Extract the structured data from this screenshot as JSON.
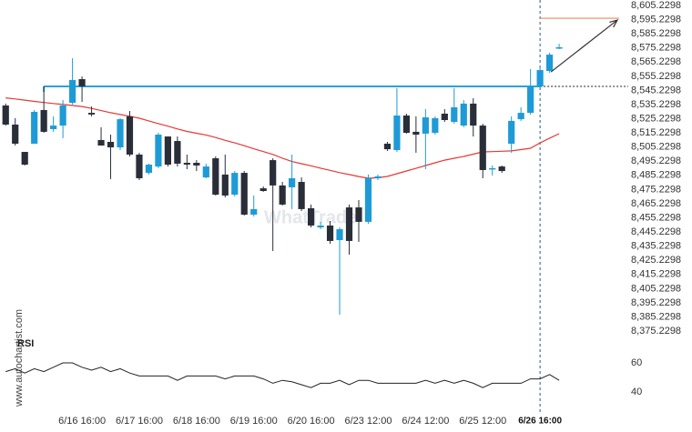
{
  "chart_data": {
    "type": "candlestick",
    "categories": [
      null,
      null,
      null,
      null,
      null,
      null,
      null,
      null,
      "6/16 16:00",
      null,
      null,
      null,
      null,
      null,
      "6/17 16:00",
      null,
      null,
      null,
      null,
      null,
      "6/18 16:00",
      null,
      null,
      null,
      null,
      null,
      "6/19 16:00",
      null,
      null,
      null,
      null,
      null,
      "6/20 16:00",
      null,
      null,
      null,
      null,
      null,
      "6/23 12:00",
      null,
      null,
      null,
      null,
      null,
      "6/24 12:00",
      null,
      null,
      null,
      null,
      null,
      "6/25 12:00",
      null,
      null,
      null,
      null,
      null,
      "6/26 16:00",
      null,
      null
    ],
    "open": [
      8534.6,
      8521.1,
      8501.8,
      8507.6,
      8531.4,
      8517.9,
      8520.4,
      8536.5,
      8553.2,
      8529.4,
      8510.2,
      8508.9,
      8505.0,
      8526.9,
      8499.9,
      8487.0,
      8491.5,
      8512.7,
      8509.5,
      8494.1,
      8494.1,
      8483.8,
      8497.3,
      8485.8,
      8471.6,
      8487.0,
      8457.5,
      8476.1,
      8496.0,
      8478.1,
      8476.8,
      8480.6,
      8462.0,
      8448.5,
      8449.8,
      8439.5,
      8462.6,
      8462.6,
      8452.4,
      8483.2,
      8507.6,
      8503.1,
      8527.5,
      8516.0,
      8514.7,
      8515.3,
      8528.8,
      8523.0,
      8520.4,
      8535.9,
      8520.4,
      8489.6,
      8491.5,
      8507.6,
      8524.9,
      8529.4,
      8548.1,
      8559.0,
      8575.7
    ],
    "high": [
      8535.9,
      8525.6,
      8501.8,
      8531.4,
      8548.1,
      8526.9,
      8538.4,
      8568.0,
      8555.1,
      8533.9,
      8519.2,
      8514.0,
      8525.6,
      8530.7,
      8501.2,
      8493.5,
      8515.3,
      8512.7,
      8512.7,
      8499.9,
      8496.0,
      8493.5,
      8498.6,
      8499.9,
      8488.3,
      8488.3,
      8471.0,
      8477.4,
      8497.3,
      8480.6,
      8499.9,
      8483.8,
      8464.6,
      8452.4,
      8453.0,
      8448.5,
      8464.6,
      8467.8,
      8485.8,
      8485.8,
      8508.9,
      8546.8,
      8528.8,
      8526.9,
      8532.0,
      8526.9,
      8532.0,
      8546.8,
      8538.4,
      8539.7,
      8521.7,
      8492.2,
      8492.2,
      8526.9,
      8533.3,
      8560.3,
      8562.2,
      8571.8,
      8578.2
    ],
    "low": [
      8520.4,
      8506.3,
      8492.2,
      8507.6,
      8515.3,
      8516.0,
      8511.5,
      8535.2,
      8537.1,
      8526.9,
      8506.3,
      8482.6,
      8503.1,
      8498.6,
      8481.9,
      8485.8,
      8490.3,
      8491.5,
      8491.5,
      8489.6,
      8488.3,
      8483.2,
      8471.0,
      8469.7,
      8470.3,
      8456.9,
      8456.2,
      8473.6,
      8431.8,
      8463.9,
      8461.4,
      8460.1,
      8448.5,
      8447.2,
      8436.9,
      8386.8,
      8429.2,
      8438.2,
      8451.1,
      8481.9,
      8502.5,
      8501.8,
      8514.7,
      8501.2,
      8489.6,
      8514.0,
      8523.0,
      8521.7,
      8519.2,
      8512.7,
      8483.2,
      8485.1,
      8487.0,
      8501.2,
      8523.7,
      8528.2,
      8546.8,
      8557.7,
      8574.4
    ],
    "close": [
      8521.1,
      8507.6,
      8492.8,
      8530.1,
      8516.0,
      8520.4,
      8534.6,
      8552.6,
      8548.1,
      8528.2,
      8506.3,
      8505.0,
      8524.9,
      8499.9,
      8483.2,
      8492.8,
      8514.0,
      8492.8,
      8493.5,
      8492.8,
      8492.2,
      8491.5,
      8471.6,
      8471.0,
      8487.0,
      8457.5,
      8461.4,
      8474.2,
      8478.1,
      8464.6,
      8483.2,
      8461.4,
      8449.8,
      8449.8,
      8438.9,
      8447.2,
      8438.9,
      8452.4,
      8483.2,
      8484.5,
      8503.7,
      8527.5,
      8515.3,
      8514.0,
      8526.2,
      8525.6,
      8524.3,
      8533.3,
      8535.9,
      8520.4,
      8489.0,
      8490.3,
      8488.3,
      8523.7,
      8529.4,
      8548.1,
      8559.6,
      8570.5,
      8575.7
    ],
    "up_color": "#1e9bd7",
    "down_color": "#2a2e39",
    "ylim": [
      8372.7,
      8609.1
    ],
    "yticks": [
      {
        "value": 8605.2298,
        "label": "8,605.2298"
      },
      {
        "value": 8595.2298,
        "label": "8,595.2298"
      },
      {
        "value": 8585.2298,
        "label": "8,585.2298"
      },
      {
        "value": 8575.2298,
        "label": "8,575.2298"
      },
      {
        "value": 8565.2298,
        "label": "8,565.2298"
      },
      {
        "value": 8555.2298,
        "label": "8,555.2298"
      },
      {
        "value": 8545.2298,
        "label": "8,545.2298"
      },
      {
        "value": 8535.2298,
        "label": "8,535.2298"
      },
      {
        "value": 8525.2298,
        "label": "8,525.2298"
      },
      {
        "value": 8515.2298,
        "label": "8,515.2298"
      },
      {
        "value": 8505.2298,
        "label": "8,505.2298"
      },
      {
        "value": 8495.2298,
        "label": "8,495.2298"
      },
      {
        "value": 8485.2298,
        "label": "8,485.2298"
      },
      {
        "value": 8475.2298,
        "label": "8,475.2298"
      },
      {
        "value": 8465.2298,
        "label": "8,465.2298"
      },
      {
        "value": 8455.2298,
        "label": "8,455.2298"
      },
      {
        "value": 8445.2298,
        "label": "8,445.2298"
      },
      {
        "value": 8435.2298,
        "label": "8,435.2298"
      },
      {
        "value": 8425.2298,
        "label": "8,425.2298"
      },
      {
        "value": 8415.2298,
        "label": "8,415.2298"
      },
      {
        "value": 8405.2298,
        "label": "8,405.2298"
      },
      {
        "value": 8395.2298,
        "label": "8,395.2298"
      },
      {
        "value": 8385.2298,
        "label": "8,385.2298"
      },
      {
        "value": 8375.2298,
        "label": "8,375.2298"
      }
    ],
    "level": 8548.1,
    "level_color": "#29a3dc",
    "target": 8596.2,
    "target_color": "#f08a5d",
    "ma": {
      "color": "#e53935",
      "values": [
        8540,
        8539.2,
        8538.4,
        8537.5,
        8536.7,
        8536,
        8535.3,
        8534.6,
        8533.9,
        8532.5,
        8531,
        8529.5,
        8528.2,
        8527,
        8525.6,
        8523.7,
        8521.8,
        8520,
        8518,
        8516.3,
        8515,
        8513.8,
        8512,
        8510,
        8508.2,
        8506.2,
        8504,
        8502,
        8500,
        8497.3,
        8495,
        8493.5,
        8492,
        8490.3,
        8488.8,
        8487.2,
        8485.8,
        8484.4,
        8483.2,
        8483.6,
        8484.5,
        8486.4,
        8488.3,
        8490.2,
        8492.2,
        8494.1,
        8496,
        8497.3,
        8498.6,
        8500.2,
        8501.8,
        8502,
        8502.3,
        8502.5,
        8503.4,
        8504.4,
        8508.2,
        8511.5,
        8514.7
      ]
    },
    "rsi": {
      "label": "RSI",
      "color": "#222",
      "ylim": [
        25,
        75
      ],
      "yticks": [
        60,
        40
      ],
      "values": [
        54,
        56,
        53,
        56,
        54,
        57,
        60,
        60,
        57,
        55,
        57,
        54,
        56,
        53,
        51,
        51,
        51,
        51,
        48,
        51,
        51,
        51,
        51,
        49,
        51,
        51,
        51,
        49,
        46,
        48,
        47,
        45,
        43,
        46,
        46,
        48,
        45,
        48,
        48,
        46,
        46,
        46,
        46,
        46,
        48,
        46,
        48,
        46,
        48,
        46,
        43,
        46,
        46,
        46,
        46,
        49,
        49,
        52,
        48
      ]
    },
    "watermarks": [
      "www.autochartist.com",
      "WhatTrade"
    ]
  }
}
